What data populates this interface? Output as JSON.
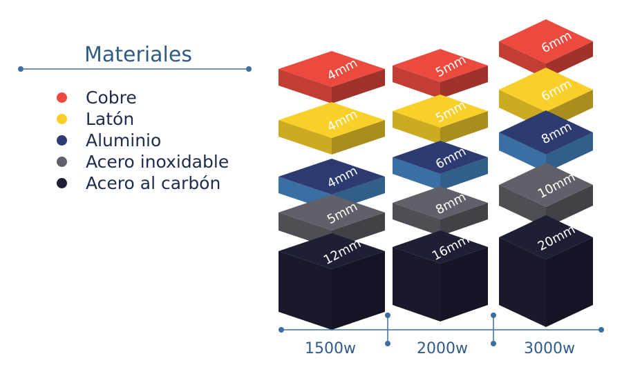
{
  "legend": {
    "title": "Materiales",
    "items": [
      {
        "label": "Cobre",
        "color": "#ec4a3f"
      },
      {
        "label": "Latón",
        "color": "#f9cf2a"
      },
      {
        "label": "Aluminio",
        "color": "#2d3b73"
      },
      {
        "label": "Acero inoxidable",
        "color": "#5f6068"
      },
      {
        "label": "Acero al carbón",
        "color": "#1e1e35"
      }
    ]
  },
  "line_color": "#3b6ea1",
  "columns": [
    {
      "power": "1500w",
      "blocks": [
        {
          "material": "Cobre",
          "thickness": "4mm"
        },
        {
          "material": "Latón",
          "thickness": "4mm"
        },
        {
          "material": "Aluminio",
          "thickness": "4mm"
        },
        {
          "material": "Acero inoxidable",
          "thickness": "5mm"
        },
        {
          "material": "Acero al carbón",
          "thickness": "12mm"
        }
      ]
    },
    {
      "power": "2000w",
      "blocks": [
        {
          "material": "Cobre",
          "thickness": "5mm"
        },
        {
          "material": "Latón",
          "thickness": "5mm"
        },
        {
          "material": "Aluminio",
          "thickness": "6mm"
        },
        {
          "material": "Acero inoxidable",
          "thickness": "8mm"
        },
        {
          "material": "Acero al carbón",
          "thickness": "16mm"
        }
      ]
    },
    {
      "power": "3000w",
      "blocks": [
        {
          "material": "Cobre",
          "thickness": "6mm"
        },
        {
          "material": "Latón",
          "thickness": "6mm"
        },
        {
          "material": "Aluminio",
          "thickness": "8mm"
        },
        {
          "material": "Acero inoxidable",
          "thickness": "10mm"
        },
        {
          "material": "Acero al carbón",
          "thickness": "20mm"
        }
      ]
    }
  ]
}
